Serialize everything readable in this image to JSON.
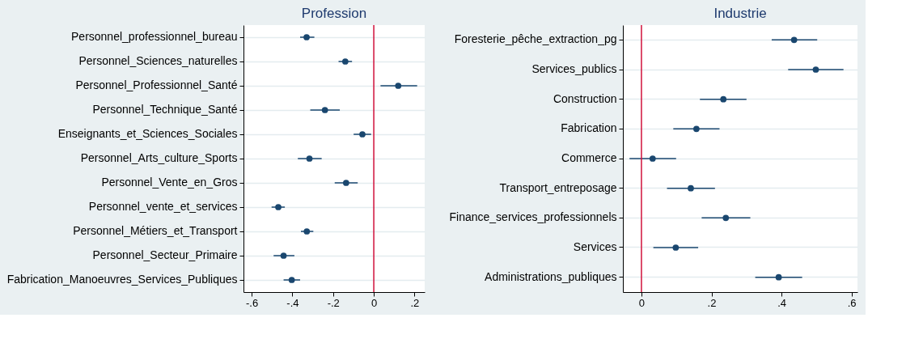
{
  "chart_data": [
    {
      "type": "scatter",
      "title": "Profession",
      "orientation": "horizontal",
      "marker": "circle",
      "grid": "y",
      "categories": [
        "Personnel_professionnel_bureau",
        "Personnel_Sciences_naturelles",
        "Personnel_Professionnel_Santé",
        "Personnel_Technique_Santé",
        "Enseignants_et_Sciences_Sociales",
        "Personnel_Arts_culture_Sports",
        "Personnel_Vente_en_Gros",
        "Personnel_vente_et_services",
        "Personnel_Métiers_et_Transport",
        "Personnel_Secteur_Primaire",
        "Fabrication_Manoeuvres_Services_Publiques"
      ],
      "series": [
        {
          "color": "#1a476f",
          "values": [
            -0.33,
            -0.14,
            0.12,
            -0.24,
            -0.056,
            -0.316,
            -0.136,
            -0.469,
            -0.329,
            -0.443,
            -0.403
          ],
          "errors": [
            [
              -0.362,
              -0.292
            ],
            [
              -0.173,
              -0.107
            ],
            [
              0.033,
              0.213
            ],
            [
              -0.312,
              -0.167
            ],
            [
              -0.099,
              -0.013
            ],
            [
              -0.373,
              -0.256
            ],
            [
              -0.192,
              -0.079
            ],
            [
              -0.502,
              -0.437
            ],
            [
              -0.358,
              -0.297
            ],
            [
              -0.492,
              -0.39
            ],
            [
              -0.443,
              -0.362
            ]
          ]
        }
      ],
      "xlim": [
        -0.64,
        0.25
      ],
      "xticks": [
        {
          "value": -0.6,
          "label": "-.6"
        },
        {
          "value": -0.4,
          "label": "-.4"
        },
        {
          "value": -0.2,
          "label": "-.2"
        },
        0,
        {
          "value": 0.2,
          "label": ".2"
        }
      ],
      "ref_lines": [
        {
          "axis": "x",
          "value": 0,
          "color": "#d0103a"
        }
      ]
    },
    {
      "type": "scatter",
      "title": "Industrie",
      "orientation": "horizontal",
      "marker": "circle",
      "grid": "y",
      "categories": [
        "Foresterie_pêche_extraction_pg",
        "Services_publics",
        "Construction",
        "Fabrication",
        "Commerce",
        "Transport_entreposage",
        "Finance_services_professionnels",
        "Services",
        "Administrations_publiques"
      ],
      "series": [
        {
          "color": "#1a476f",
          "values": [
            0.436,
            0.498,
            0.234,
            0.157,
            0.032,
            0.141,
            0.241,
            0.098,
            0.392
          ],
          "errors": [
            [
              0.372,
              0.502
            ],
            [
              0.419,
              0.577
            ],
            [
              0.167,
              0.3
            ],
            [
              0.091,
              0.223
            ],
            [
              -0.034,
              0.099
            ],
            [
              0.073,
              0.21
            ],
            [
              0.172,
              0.311
            ],
            [
              0.034,
              0.162
            ],
            [
              0.325,
              0.459
            ]
          ]
        }
      ],
      "xlim": [
        -0.053,
        0.617
      ],
      "xticks": [
        0,
        {
          "value": 0.2,
          "label": ".2"
        },
        {
          "value": 0.4,
          "label": ".4"
        },
        {
          "value": 0.6,
          "label": ".6"
        }
      ],
      "ref_lines": [
        {
          "axis": "x",
          "value": 0,
          "color": "#d0103a"
        }
      ]
    }
  ]
}
